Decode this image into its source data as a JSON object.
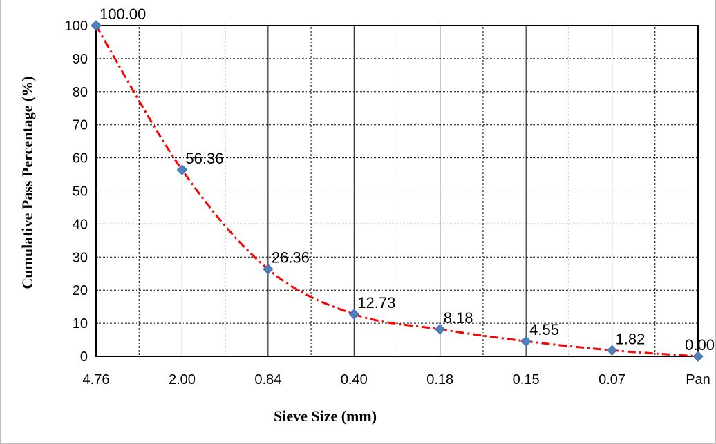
{
  "chart_data": {
    "type": "line",
    "categories": [
      "4.76",
      "2.00",
      "0.84",
      "0.40",
      "0.18",
      "0.15",
      "0.07",
      "Pan"
    ],
    "series": [
      {
        "values": [
          100.0,
          56.36,
          26.36,
          12.73,
          8.18,
          4.55,
          1.82,
          0.0
        ],
        "labels": [
          "100.00",
          "56.36",
          "26.36",
          "12.73",
          "8.18",
          "4.55",
          "1.82",
          "0.00"
        ]
      }
    ],
    "xlabel": "Sieve Size (mm)",
    "ylabel": "Cumulative Pass Percentage  (%)",
    "ylim": [
      0,
      100
    ],
    "yticks": [
      "0",
      "10",
      "20",
      "30",
      "40",
      "50",
      "60",
      "70",
      "80",
      "90",
      "100"
    ],
    "grid": true,
    "minor_vertical_grid": true,
    "line_color": "#ff0000",
    "line_style": "dash-dot",
    "marker_color": "#4f81bd",
    "marker": "diamond"
  }
}
